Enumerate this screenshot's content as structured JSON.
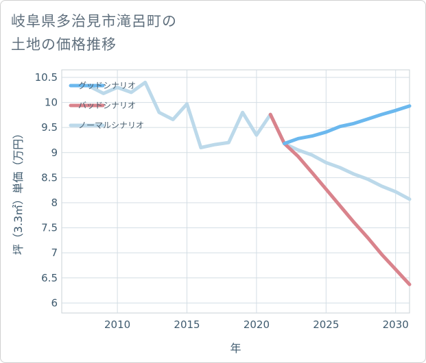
{
  "title_lines": [
    "岐阜県多治見市滝呂町の",
    "土地の価格推移"
  ],
  "chart_data": {
    "type": "line",
    "title": "岐阜県多治見市滝呂町の土地の価格推移",
    "xlabel": "年",
    "ylabel": "坪（3.3㎡）単価（万円）",
    "xlim": [
      2006,
      2031
    ],
    "ylim": [
      5.8,
      10.65
    ],
    "xticks": [
      2010,
      2015,
      2020,
      2025,
      2030
    ],
    "yticks": [
      6,
      6.5,
      7,
      7.5,
      8,
      8.5,
      9,
      9.5,
      10,
      10.5
    ],
    "ytick_labels": [
      "6",
      "6.5",
      "7",
      "7.5",
      "8",
      "8.5",
      "9",
      "9.5",
      "10",
      "10.5"
    ],
    "grid": true,
    "legend_position": "top-left",
    "series": [
      {
        "name": "グッドシナリオ",
        "color": "#6bb8ee",
        "x": [
          2022,
          2023,
          2024,
          2025,
          2026,
          2027,
          2028,
          2029,
          2030,
          2031
        ],
        "y": [
          9.18,
          9.28,
          9.33,
          9.41,
          9.52,
          9.58,
          9.67,
          9.76,
          9.84,
          9.93
        ]
      },
      {
        "name": "バッドシナリオ",
        "color": "#d9838c",
        "x": [
          2021,
          2022,
          2023,
          2024,
          2025,
          2026,
          2027,
          2028,
          2029,
          2030,
          2031
        ],
        "y": [
          9.76,
          9.18,
          8.92,
          8.6,
          8.27,
          7.94,
          7.61,
          7.3,
          6.97,
          6.67,
          6.37
        ]
      },
      {
        "name": "ノーマルシナリオ",
        "color": "#bcd9ea",
        "x": [
          2008,
          2009,
          2010,
          2011,
          2012,
          2013,
          2014,
          2015,
          2016,
          2017,
          2018,
          2019,
          2020,
          2021,
          2022,
          2023,
          2024,
          2025,
          2026,
          2027,
          2028,
          2029,
          2030,
          2031
        ],
        "y": [
          10.32,
          10.18,
          10.3,
          10.2,
          10.4,
          9.8,
          9.66,
          9.97,
          9.1,
          9.16,
          9.2,
          9.8,
          9.35,
          9.76,
          9.18,
          9.05,
          8.95,
          8.8,
          8.7,
          8.57,
          8.47,
          8.33,
          8.22,
          8.07
        ]
      }
    ]
  }
}
